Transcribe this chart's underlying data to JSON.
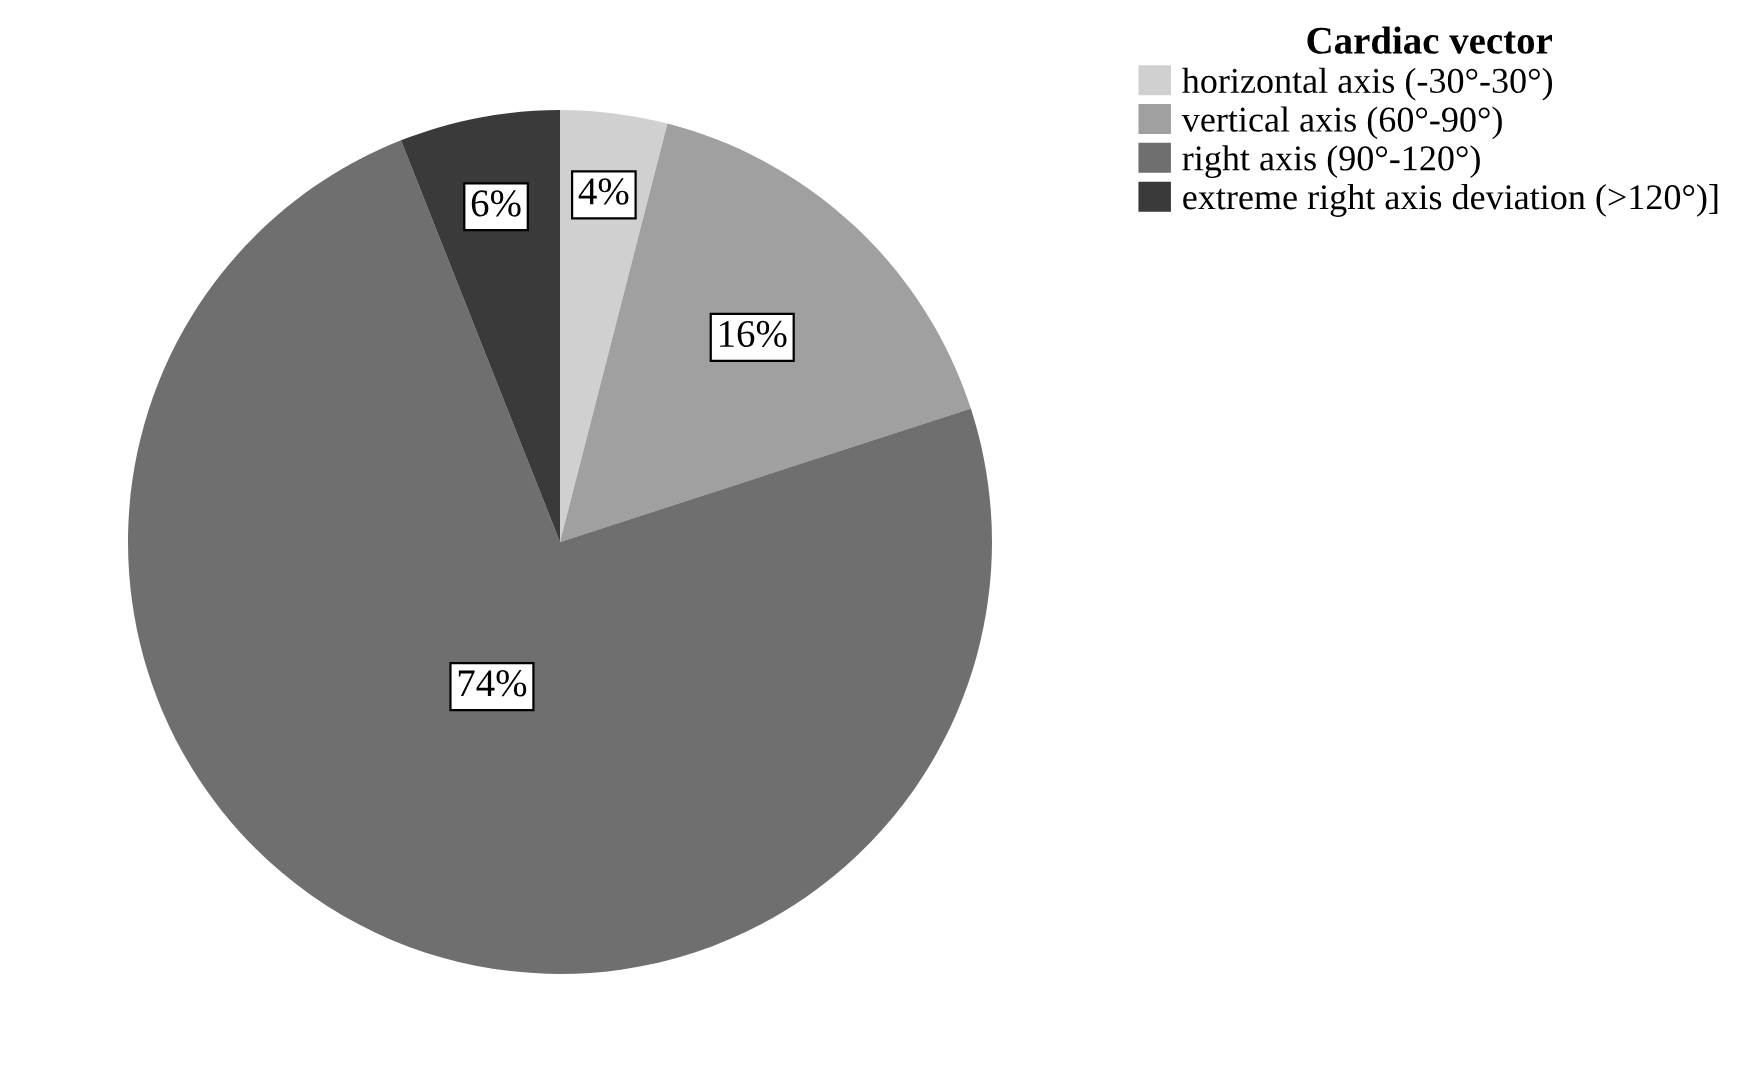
{
  "chart_data": {
    "type": "pie",
    "legend_title": "Cardiac vector",
    "categories": [
      "horizontal axis (-30°-30°)",
      "vertical axis (60°-90°)",
      "right axis (90°-120°)",
      "extreme right axis deviation (>120°)]"
    ],
    "values": [
      4,
      16,
      74,
      6
    ],
    "colors": [
      "#d0d0d0",
      "#a0a0a0",
      "#6f6f6f",
      "#3a3a3a"
    ],
    "value_labels": [
      "4%",
      "16%",
      "74%",
      "6%"
    ],
    "legend": "top right"
  }
}
